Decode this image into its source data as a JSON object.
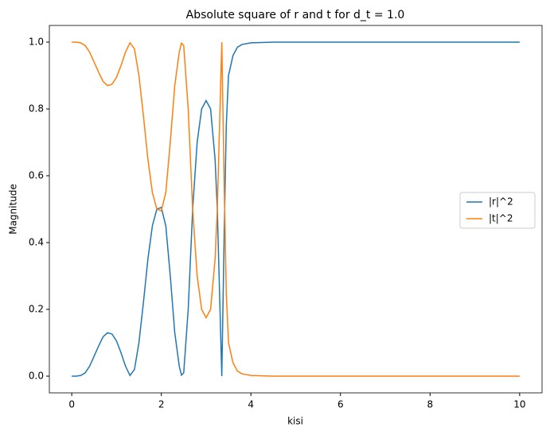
{
  "chart_data": {
    "type": "line",
    "title": "Absolute square of r and t for d_t = 1.0",
    "xlabel": "kisi",
    "ylabel": "Magnitude",
    "x": [
      0,
      0.1,
      0.2,
      0.3,
      0.4,
      0.5,
      0.6,
      0.7,
      0.8,
      0.9,
      1.0,
      1.1,
      1.2,
      1.3,
      1.4,
      1.5,
      1.6,
      1.7,
      1.8,
      1.9,
      2.0,
      2.1,
      2.2,
      2.3,
      2.4,
      2.45,
      2.5,
      2.6,
      2.7,
      2.8,
      2.9,
      3.0,
      3.1,
      3.2,
      3.25,
      3.3,
      3.35,
      3.4,
      3.45,
      3.5,
      3.6,
      3.7,
      3.8,
      4.0,
      4.5,
      5,
      6,
      7,
      8,
      9,
      10
    ],
    "series": [
      {
        "name": "|r|^2",
        "color": "#1f77b4",
        "values": [
          0,
          0,
          0.002,
          0.01,
          0.03,
          0.06,
          0.09,
          0.118,
          0.13,
          0.126,
          0.105,
          0.07,
          0.03,
          0.002,
          0.02,
          0.1,
          0.22,
          0.35,
          0.45,
          0.5,
          0.505,
          0.45,
          0.3,
          0.13,
          0.03,
          0.003,
          0.01,
          0.2,
          0.5,
          0.7,
          0.8,
          0.825,
          0.8,
          0.65,
          0.5,
          0.25,
          0,
          0.4,
          0.75,
          0.9,
          0.96,
          0.985,
          0.993,
          0.998,
          1,
          1,
          1,
          1,
          1,
          1,
          1
        ]
      },
      {
        "name": "|t|^2",
        "color": "#ff7f0e",
        "values": [
          1,
          1,
          0.998,
          0.99,
          0.97,
          0.94,
          0.91,
          0.882,
          0.87,
          0.874,
          0.895,
          0.93,
          0.97,
          0.998,
          0.98,
          0.9,
          0.78,
          0.65,
          0.55,
          0.5,
          0.495,
          0.55,
          0.7,
          0.87,
          0.97,
          0.997,
          0.99,
          0.8,
          0.5,
          0.3,
          0.2,
          0.175,
          0.2,
          0.35,
          0.5,
          0.75,
          1,
          0.6,
          0.25,
          0.1,
          0.04,
          0.015,
          0.007,
          0.002,
          0,
          0,
          0,
          0,
          0,
          0,
          0
        ]
      }
    ],
    "xlim": [
      -0.5,
      10.5
    ],
    "ylim": [
      -0.05,
      1.05
    ],
    "xticks": [
      0,
      2,
      4,
      6,
      8,
      10
    ],
    "yticks": [
      {
        "value": 0,
        "label": "0.0"
      },
      0.2,
      0.4,
      0.6,
      0.8,
      {
        "value": 1,
        "label": "1.0"
      }
    ],
    "legend": "right"
  }
}
